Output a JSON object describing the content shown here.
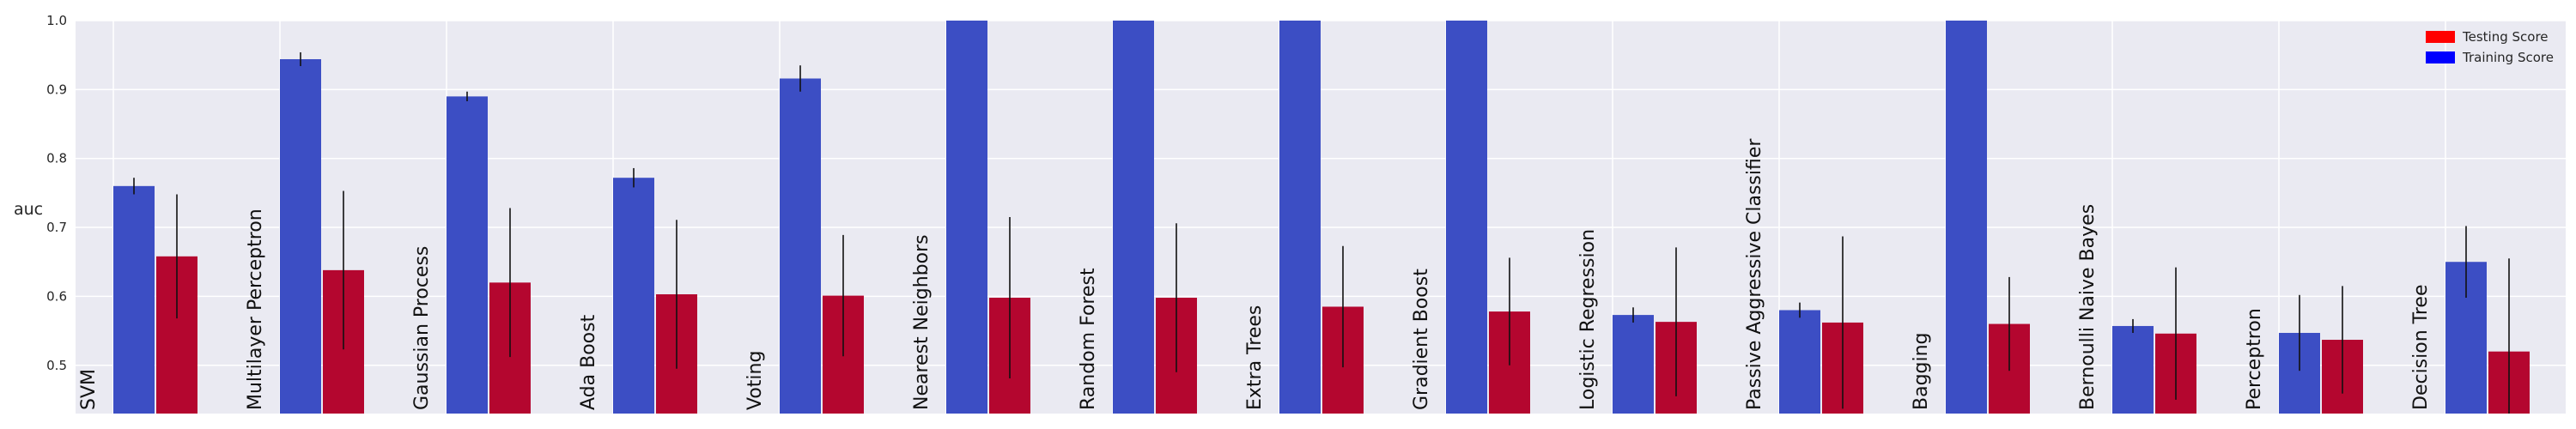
{
  "chart_data": {
    "type": "bar",
    "ylabel": "auc",
    "ylim": [
      0.43,
      1.0
    ],
    "yticks": [
      0.5,
      0.6,
      0.7,
      0.8,
      0.9,
      1.0
    ],
    "ytick_labels": [
      "0.5",
      "0.6",
      "0.7",
      "0.8",
      "0.9",
      "1.0"
    ],
    "grid": true,
    "legend_position": "top-right",
    "categories": [
      "SVM",
      "Multilayer Perceptron",
      "Gaussian Process",
      "Ada Boost",
      "Voting",
      "Nearest Neighbors",
      "Random Forest",
      "Extra Trees",
      "Gradient Boost",
      "Logistic Regression",
      "Passive Aggressive Classifier",
      "Bagging",
      "Bernoulli Naive Bayes",
      "Perceptron",
      "Decision Tree"
    ],
    "series": [
      {
        "name": "Training Score",
        "color": "#3c4ec4",
        "values": [
          0.76,
          0.944,
          0.89,
          0.772,
          0.916,
          1.0,
          1.0,
          1.0,
          1.0,
          0.573,
          0.58,
          1.0,
          0.557,
          0.547,
          0.65
        ],
        "errors": [
          0.012,
          0.01,
          0.007,
          0.014,
          0.019,
          0.0,
          0.0,
          0.0,
          0.0,
          0.011,
          0.011,
          0.0,
          0.01,
          0.055,
          0.052
        ]
      },
      {
        "name": "Testing Score",
        "color": "#b4062f",
        "values": [
          0.658,
          0.638,
          0.62,
          0.603,
          0.601,
          0.598,
          0.598,
          0.585,
          0.578,
          0.563,
          0.562,
          0.56,
          0.546,
          0.537,
          0.52
        ],
        "errors": [
          0.09,
          0.115,
          0.108,
          0.108,
          0.088,
          0.117,
          0.108,
          0.088,
          0.078,
          0.108,
          0.125,
          0.068,
          0.096,
          0.078,
          0.135
        ]
      }
    ]
  }
}
